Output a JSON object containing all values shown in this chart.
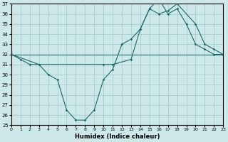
{
  "xlabel": "Humidex (Indice chaleur)",
  "bg_color": "#cce8e8",
  "line_color": "#1a6b6b",
  "grid_color": "#aacccc",
  "ylim": [
    25,
    37
  ],
  "xlim": [
    0,
    23
  ],
  "yticks": [
    25,
    26,
    27,
    28,
    29,
    30,
    31,
    32,
    33,
    34,
    35,
    36,
    37
  ],
  "xticks": [
    0,
    1,
    2,
    3,
    4,
    5,
    6,
    7,
    8,
    9,
    10,
    11,
    12,
    13,
    14,
    15,
    16,
    17,
    18,
    19,
    20,
    21,
    22,
    23
  ],
  "line1_x": [
    0,
    1,
    2,
    3,
    4,
    5,
    6,
    7,
    8,
    9,
    10,
    11,
    12,
    13,
    14,
    15,
    16,
    17,
    18,
    19,
    20,
    21,
    22,
    23
  ],
  "line1_y": [
    32.0,
    31.5,
    31.0,
    31.0,
    30.0,
    29.5,
    26.5,
    25.5,
    25.5,
    26.5,
    29.5,
    30.5,
    33.0,
    33.5,
    34.5,
    36.5,
    37.5,
    36.0,
    36.5,
    35.0,
    33.0,
    32.5,
    32.0,
    32.0
  ],
  "line2_x": [
    0,
    3,
    10,
    11,
    13,
    14,
    15,
    16,
    17,
    18,
    20,
    21,
    22,
    23
  ],
  "line2_y": [
    32.0,
    31.0,
    31.0,
    31.0,
    31.5,
    34.5,
    36.5,
    36.0,
    36.3,
    37.0,
    35.0,
    33.0,
    32.5,
    32.0
  ],
  "line3_x": [
    0,
    23
  ],
  "line3_y": [
    32.0,
    32.0
  ]
}
